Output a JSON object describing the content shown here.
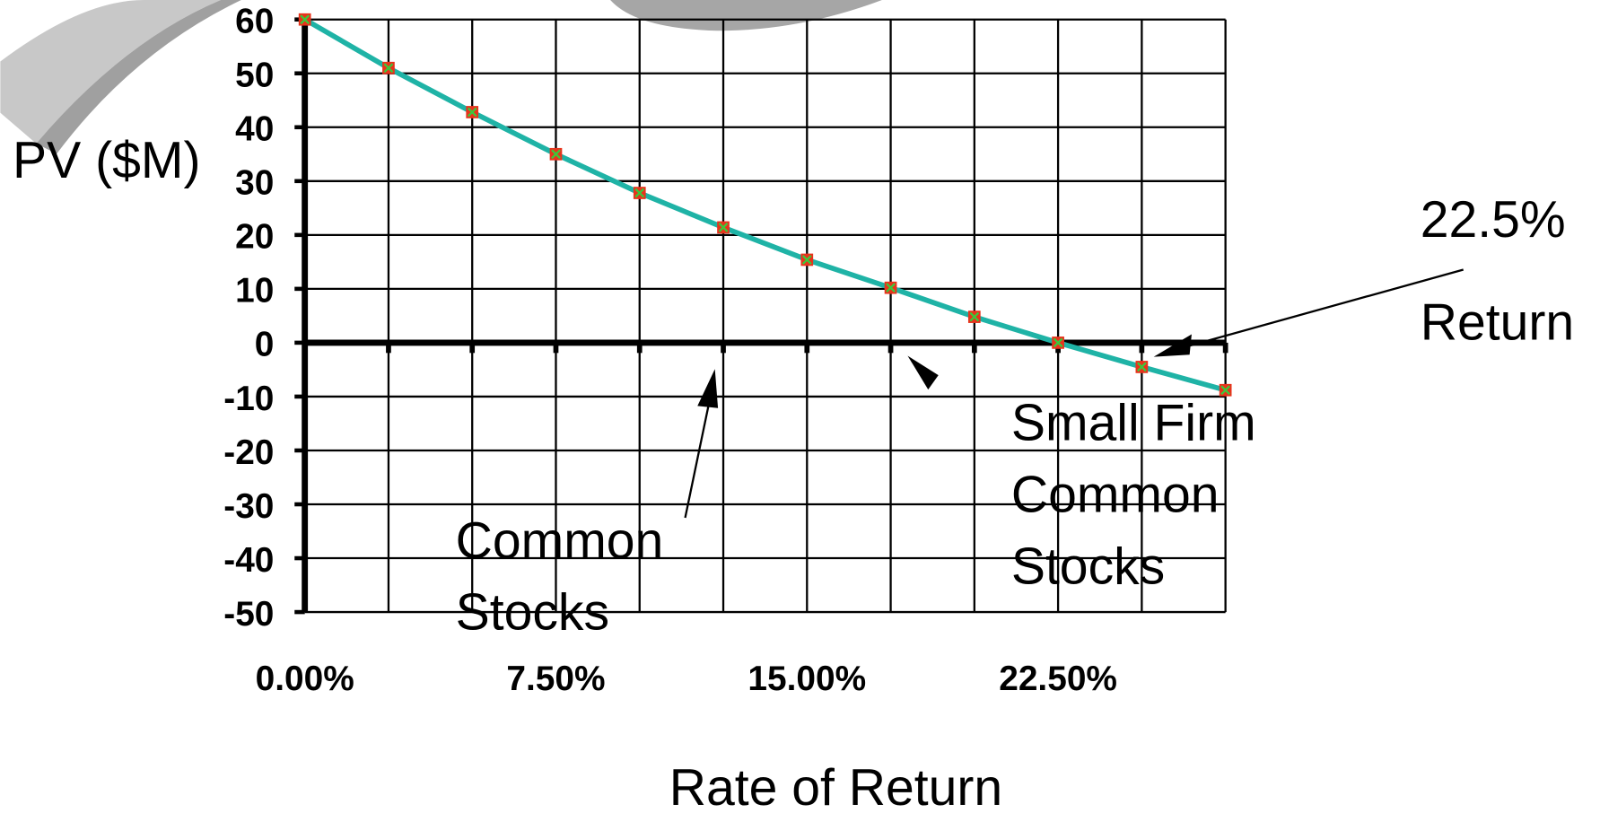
{
  "chart_data": {
    "type": "line",
    "xlabel": "Rate of Return",
    "ylabel": "PV ($M)",
    "x": [
      0,
      2.5,
      5,
      7.5,
      10,
      12.5,
      15,
      17.5,
      20,
      22.5,
      25,
      27.5
    ],
    "series": [
      {
        "name": "PV",
        "color": "#1fb3a6",
        "marker_color": "#e8331c",
        "cross_color": "#3cc83c",
        "values": [
          60,
          51,
          42.8,
          35,
          27.8,
          21.4,
          15.4,
          10.2,
          4.8,
          0,
          -4.5,
          -8.8
        ]
      }
    ],
    "xlim": [
      0,
      27.5
    ],
    "xticks": [
      {
        "value": 0,
        "label": "0.00%"
      },
      {
        "value": 7.5,
        "label": "7.50%"
      },
      {
        "value": 15,
        "label": "15.00%"
      },
      {
        "value": 22.5,
        "label": "22.50%"
      }
    ],
    "xminor": [
      2.5,
      5,
      10,
      12.5,
      17.5,
      20,
      25,
      27.5
    ],
    "ylim": [
      -50,
      60
    ],
    "yticks": [
      60,
      50,
      40,
      30,
      20,
      10,
      0,
      -10,
      -20,
      -30,
      -40,
      -50
    ],
    "grid": true,
    "annotations": [
      {
        "lines": [
          "22.5%",
          "Return"
        ]
      },
      {
        "lines": [
          "Small Firm",
          "Common",
          "Stocks"
        ]
      },
      {
        "lines": [
          "Common",
          "Stocks"
        ]
      }
    ]
  }
}
